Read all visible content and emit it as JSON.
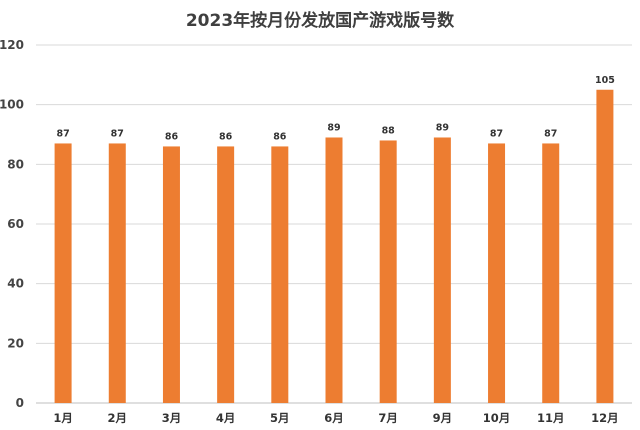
{
  "chart_data": {
    "type": "bar",
    "title": "2023年按月份发放国产游戏版号数",
    "categories": [
      "1月",
      "2月",
      "3月",
      "4月",
      "5月",
      "6月",
      "7月",
      "9月",
      "10月",
      "11月",
      "12月"
    ],
    "series": [
      {
        "values": [
          87,
          87,
          86,
          86,
          86,
          89,
          88,
          89,
          87,
          87,
          105
        ]
      }
    ],
    "xlabel": "",
    "ylabel": "",
    "ylim": [
      0,
      120
    ],
    "yticks": [
      0,
      20,
      40,
      60,
      80,
      100,
      120
    ],
    "grid": true,
    "legend": "none",
    "colors": {
      "bar": "#ED7D31",
      "grid": "#D9D9D9"
    }
  }
}
